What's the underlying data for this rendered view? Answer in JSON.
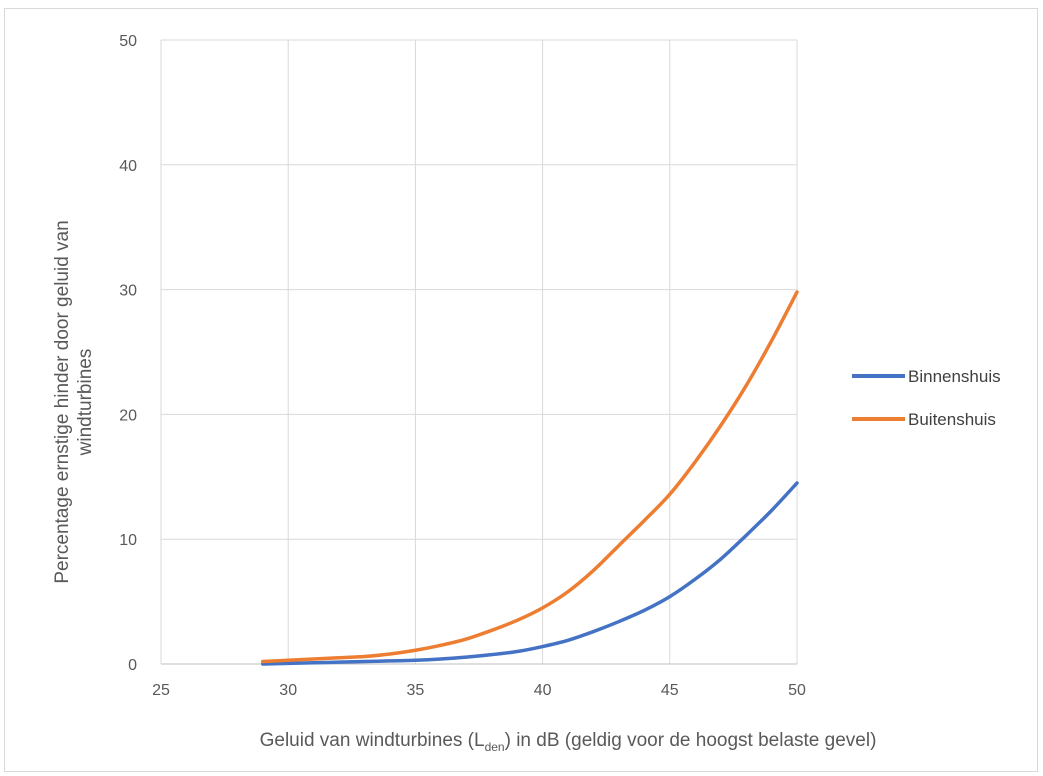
{
  "chart_data": {
    "type": "line",
    "xlabel": {
      "prefix": "Geluid van windturbines (L",
      "subscript": "den",
      "suffix": ") in dB (geldig voor de hoogst belaste gevel)"
    },
    "ylabel": [
      "Percentage ernstige hinder door geluid van",
      "windturbines"
    ],
    "xlim": [
      25,
      50
    ],
    "ylim": [
      0,
      50
    ],
    "xticks": [
      25,
      30,
      35,
      40,
      45,
      50
    ],
    "yticks": [
      0,
      10,
      20,
      30,
      40,
      50
    ],
    "grid": true,
    "legend_position": "right",
    "series": [
      {
        "name": "Binnenshuis",
        "color": "#4472c4",
        "x": [
          29,
          30,
          31,
          32,
          33,
          34,
          35,
          36,
          37,
          38,
          39,
          40,
          41,
          42,
          43,
          44,
          45,
          46,
          47,
          48,
          49,
          50
        ],
        "y": [
          0.0,
          0.05,
          0.1,
          0.15,
          0.2,
          0.25,
          0.3,
          0.4,
          0.55,
          0.75,
          1.0,
          1.4,
          1.9,
          2.6,
          3.4,
          4.3,
          5.4,
          6.8,
          8.4,
          10.3,
          12.3,
          14.5
        ]
      },
      {
        "name": "Buitenshuis",
        "color": "#ed7d31",
        "x": [
          29,
          30,
          31,
          32,
          33,
          34,
          35,
          36,
          37,
          38,
          39,
          40,
          41,
          42,
          43,
          44,
          45,
          46,
          47,
          48,
          49,
          50
        ],
        "y": [
          0.2,
          0.3,
          0.4,
          0.5,
          0.6,
          0.8,
          1.1,
          1.5,
          2.0,
          2.7,
          3.5,
          4.5,
          5.8,
          7.5,
          9.5,
          11.5,
          13.6,
          16.2,
          19.1,
          22.3,
          25.9,
          29.8
        ]
      }
    ]
  }
}
